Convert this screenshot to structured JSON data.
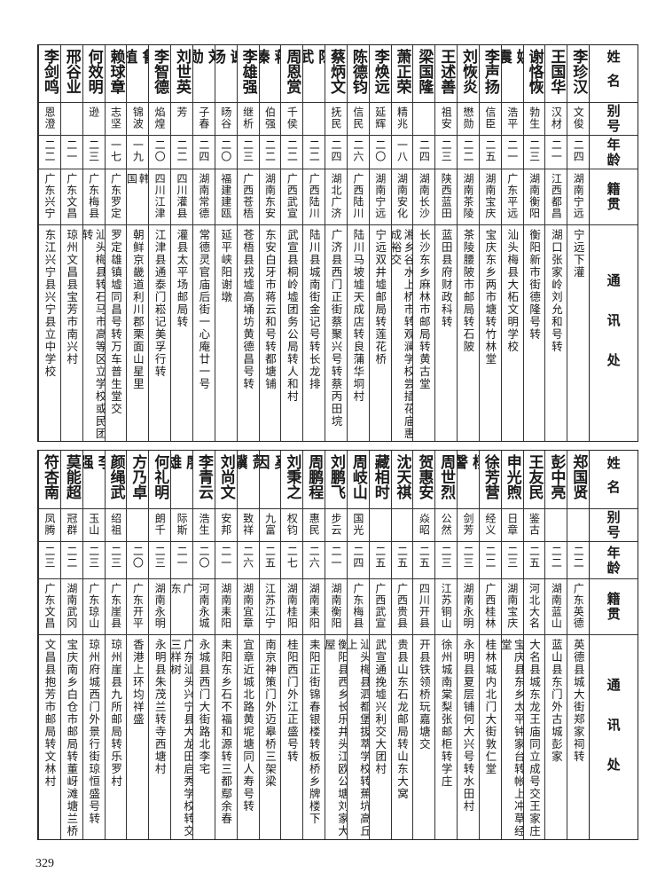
{
  "headers": {
    "name": "姓名",
    "alias": "别号",
    "age": "年龄",
    "native": "籍贯",
    "address": "通讯处"
  },
  "page_number": "329",
  "tables": [
    {
      "rows": [
        {
          "name": "李珍汉",
          "alias": "文俊",
          "age": "二四",
          "native": "湖南宁远",
          "address": "宁远下灌"
        },
        {
          "name": "王国华",
          "alias": "汉材",
          "age": "二一",
          "native": "江西都昌",
          "address": "湖口张家岭刘允和号转"
        },
        {
          "name": "谢恪恢",
          "alias": "勃生",
          "age": "二三",
          "native": "湖南衡阳",
          "address": "衡阳新市街德隆号转"
        },
        {
          "name": "姚震",
          "alias": "浩平",
          "age": "二一",
          "native": "广东平远",
          "address": "汕头梅县大柘文明学校"
        },
        {
          "name": "李声扬",
          "alias": "信臣",
          "age": "二五",
          "native": "湖南宝庆",
          "address": "宝庆东乡两市塘转竹林堂"
        },
        {
          "name": "刘恢炎",
          "alias": "懋勋",
          "age": "二二",
          "native": "湖南茶陵",
          "address": "茶陵腰陂市邮局转石陂"
        },
        {
          "name": "王述善",
          "alias": "祖安",
          "age": "二三",
          "native": "陕西蓝田",
          "address": "蓝田县府财政科转"
        },
        {
          "name": "梁国隆",
          "alias": "",
          "age": "二四",
          "native": "湖南长沙",
          "address": "长沙东乡麻林市邮局转黄古堂"
        },
        {
          "name": "萧正荣",
          "alias": "精兆",
          "age": "一八",
          "native": "湖南安化",
          "address": "湘乡谷水上桥市转观澜学校尝插花庙惠成裕交"
        },
        {
          "name": "李焕远",
          "alias": "延辉",
          "age": "二〇",
          "native": "湖南宁远",
          "address": "宁远双井墟邮局转莲花桥"
        },
        {
          "name": "陈德钧",
          "alias": "信民",
          "age": "二六",
          "native": "广西陆川",
          "address": "陆川马坡墟天成店转良蒲华垌村"
        },
        {
          "name": "蔡炳文",
          "alias": "抚民",
          "age": "二四",
          "native": "湖北广济",
          "address": "广济县西门正街蔡聚兴号转蔡丙田垸"
        },
        {
          "name": "陈武",
          "alias": "",
          "age": "二二",
          "native": "广西陆川",
          "address": "陆川县城南街金记号转长龙排"
        },
        {
          "name": "周恩赏",
          "alias": "千侯",
          "age": "二二",
          "native": "广西武宣",
          "address": "武宣县桐岭墟团务公局转人和村"
        },
        {
          "name": "蒋溱",
          "alias": "伯强",
          "age": "二二",
          "native": "湖南东安",
          "address": "东安白牙市蒋云和号转都塘铺"
        },
        {
          "name": "李雄强",
          "alias": "继析",
          "age": "二三",
          "native": "广西苍梧",
          "address": "苍梧县戎墟高埇坊黄德昌号转"
        },
        {
          "name": "谢旸",
          "alias": "旸谷",
          "age": "二〇",
          "native": "福建建瓯",
          "address": "延平峡阳谢墩"
        },
        {
          "name": "刘勋",
          "alias": "子春",
          "age": "二四",
          "native": "湖南常德",
          "address": "常德灵官庙后街一心庵廿一号"
        },
        {
          "name": "刘世英",
          "alias": "芳",
          "age": "二二",
          "native": "四川灌县",
          "address": "灌县太平场邮局转"
        },
        {
          "name": "李智德",
          "alias": "焰煌",
          "age": "二〇",
          "native": "四川江津",
          "address": "江津县通泰门崧记美孚行转"
        },
        {
          "name": "鲁植",
          "alias": "锦波",
          "age": "一九",
          "native": "韩国",
          "address": "朝鲜京畿道利川郡栗面山星里"
        },
        {
          "name": "赖球章",
          "alias": "志坚",
          "age": "一七",
          "native": "广东罗定",
          "address": "罗定雄镇墟同昌号转万车普生堂交"
        },
        {
          "name": "何效明",
          "alias": "逊",
          "age": "二三",
          "native": "广东梅县",
          "address": "汕头梅县转石马市高等区立学校或民团转"
        },
        {
          "name": "邢谷业",
          "alias": "",
          "age": "二一",
          "native": "广东文昌",
          "address": "琼州文昌县宝芳市南兴村"
        },
        {
          "name": "李剑鸣",
          "alias": "恩澄",
          "age": "二二",
          "native": "广东兴宁",
          "address": "东江兴宁县兴宁县立中学校"
        }
      ]
    },
    {
      "rows": [
        {
          "name": "郑国贤",
          "alias": "",
          "age": "二二",
          "native": "广东英德",
          "address": "英德县城大街郑家祠转"
        },
        {
          "name": "彭中亮",
          "alias": "",
          "age": "二二",
          "native": "湖南蓝山",
          "address": "蓝山县东门外古城彭家"
        },
        {
          "name": "王友民",
          "alias": "鉴古",
          "age": "二五",
          "native": "河北大名",
          "address": "大名县城东龙王庙同立成号交王家庄"
        },
        {
          "name": "申光煦",
          "alias": "日章",
          "age": "二三",
          "native": "湖南宝庆",
          "address": "宝庆县东乡太平钟家台转帐上冲草经堂"
        },
        {
          "name": "徐芳营",
          "alias": "经义",
          "age": "二二",
          "native": "广西桂林",
          "address": "桂林城内北门大街敦仁堂"
        },
        {
          "name": "杨謦",
          "alias": "剑芳",
          "age": "二三",
          "native": "湖南永明",
          "address": "永明县夏层铺何大兴号转水田村"
        },
        {
          "name": "周世烈",
          "alias": "公然",
          "age": "二三",
          "native": "江苏铜山",
          "address": "徐州城南棠梨张邮柜转学庄"
        },
        {
          "name": "贺惠安",
          "alias": "焱昭",
          "age": "二五",
          "native": "四川开县",
          "address": "开县铁领桥玩嘉塘交"
        },
        {
          "name": "沈天祺",
          "alias": "",
          "age": "二五",
          "native": "广西贵县",
          "address": "贵县山东石龙邮局转山东大窝"
        },
        {
          "name": "藏相时",
          "alias": "",
          "age": "二五",
          "native": "广西武宣",
          "address": "武宣通挽墟兴利交大团村"
        },
        {
          "name": "周岐山",
          "alias": "国光",
          "age": "二四",
          "native": "广东梅县",
          "address": "汕头梅县泗都堡拔萃学校转蕉坑高丘上"
        },
        {
          "name": "刘鹏飞",
          "alias": "步云",
          "age": "二一",
          "native": "湖南衡阳",
          "address": "衡阳县西乡长乐井头江欧公塘刘家大屋"
        },
        {
          "name": "周鹏程",
          "alias": "惠民",
          "age": "二六",
          "native": "湖南耒阳",
          "address": "耒阳正街锦春银楼转板桥乡牌楼下"
        },
        {
          "name": "刘秉之",
          "alias": "权钧",
          "age": "二七",
          "native": "湖南桂阳",
          "address": "桂阳西门外江正盛号转"
        },
        {
          "name": "奚因",
          "alias": "九富",
          "age": "二五",
          "native": "江苏江宁",
          "address": "南京神策门外迈皋桥三架梁"
        },
        {
          "name": "萧骥",
          "alias": "致祥",
          "age": "二六",
          "native": "湖南宜章",
          "address": "宜章近城北路黄坭塘同人寿号转"
        },
        {
          "name": "刘尚文",
          "alias": "安邦",
          "age": "二一",
          "native": "湖南耒阳",
          "address": "耒阳东乡石不福和源转三都鄢余春"
        },
        {
          "name": "李青云",
          "alias": "浩生",
          "age": "二〇",
          "native": "河南永城",
          "address": "永城县西门大街路北李宅"
        },
        {
          "name": "廖雄",
          "alias": "际斯",
          "age": "二一",
          "native": "广东",
          "address": "广东汕头兴宁县大龙田启秀学校转交三样树"
        },
        {
          "name": "何礼明",
          "alias": "朗千",
          "age": "二三",
          "native": "湖南永明",
          "address": "永明县朱茂兰转寺西塘村"
        },
        {
          "name": "方乃卓",
          "alias": "",
          "age": "二〇",
          "native": "广东开平",
          "address": "香港上环均祥盛"
        },
        {
          "name": "颜绳武",
          "alias": "绍祖",
          "age": "二三",
          "native": "广东崖县",
          "address": "琼州崖县九所邮局转乐罗村"
        },
        {
          "name": "李强",
          "alias": "玉山",
          "age": "二三",
          "native": "广东琼山",
          "address": "琼州府城西门外景行街琼恒盛号转"
        },
        {
          "name": "莫能超",
          "alias": "冠群",
          "age": "二二",
          "native": "湖南武冈",
          "address": "宝庆南乡白仓市邮局转董岈滩塘兰桥"
        },
        {
          "name": "符杏南",
          "alias": "凤腾",
          "age": "二三",
          "native": "广东文昌",
          "address": "文昌县抱芳市邮局转文林村"
        }
      ]
    }
  ]
}
